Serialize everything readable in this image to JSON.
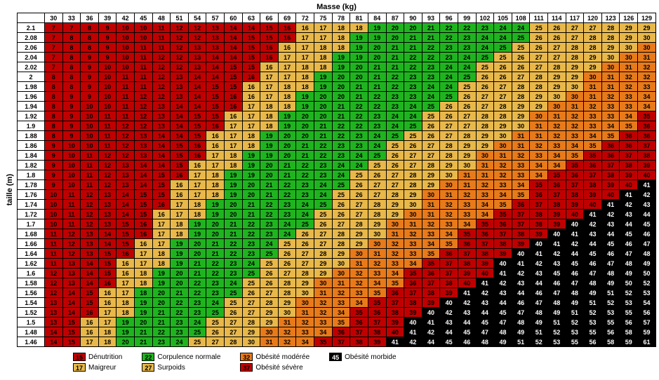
{
  "axis": {
    "x": "Masse (kg)",
    "y": "taille (m)"
  },
  "masses": [
    30,
    33,
    36,
    39,
    42,
    45,
    48,
    51,
    54,
    57,
    60,
    63,
    66,
    69,
    72,
    75,
    78,
    81,
    84,
    87,
    90,
    93,
    96,
    99,
    102,
    105,
    108,
    111,
    114,
    117,
    120,
    123,
    126,
    129
  ],
  "heights": [
    2.1,
    2.08,
    2.06,
    2.04,
    2.02,
    2,
    1.98,
    1.96,
    1.94,
    1.92,
    1.9,
    1.88,
    1.86,
    1.84,
    1.82,
    1.8,
    1.78,
    1.76,
    1.74,
    1.72,
    1.7,
    1.68,
    1.66,
    1.64,
    1.62,
    1.6,
    1.58,
    1.56,
    1.54,
    1.52,
    1.5,
    1.48,
    1.46
  ],
  "categories": {
    "denutrition": {
      "max": 15.99,
      "bg": "#c00000",
      "fg": "#000",
      "hatch": true
    },
    "maigreur": {
      "max": 18.49,
      "bg": "#e8b84a",
      "fg": "#000",
      "hatch": true
    },
    "normale": {
      "max": 24.99,
      "bg": "#1fb41f",
      "fg": "#000",
      "hatch": false
    },
    "surpoids": {
      "max": 29.99,
      "bg": "#e8b84a",
      "fg": "#000",
      "hatch": false
    },
    "obesite_moderee": {
      "max": 34.99,
      "bg": "#e87a1a",
      "fg": "#000",
      "hatch": false
    },
    "obesite_severe": {
      "max": 39.99,
      "bg": "#c00000",
      "fg": "#000",
      "hatch": false
    },
    "obesite_morbide": {
      "max": 999,
      "bg": "#000",
      "fg": "#fff",
      "hatch": false
    }
  },
  "legend": [
    [
      {
        "v": 15,
        "k": "denutrition",
        "label": "Dénutrition"
      },
      {
        "v": 17,
        "k": "maigreur",
        "label": "Maigreur"
      }
    ],
    [
      {
        "v": 22,
        "k": "normale",
        "label": "Corpulence normale"
      },
      {
        "v": 27,
        "k": "surpoids",
        "label": "Surpoids"
      }
    ],
    [
      {
        "v": 32,
        "k": "obesite_moderee",
        "label": "Obésité modérée"
      },
      {
        "v": 37,
        "k": "obesite_severe",
        "label": "Obésité sévère"
      }
    ],
    [
      {
        "v": 45,
        "k": "obesite_morbide",
        "label": "Obésité morbide"
      }
    ]
  ]
}
